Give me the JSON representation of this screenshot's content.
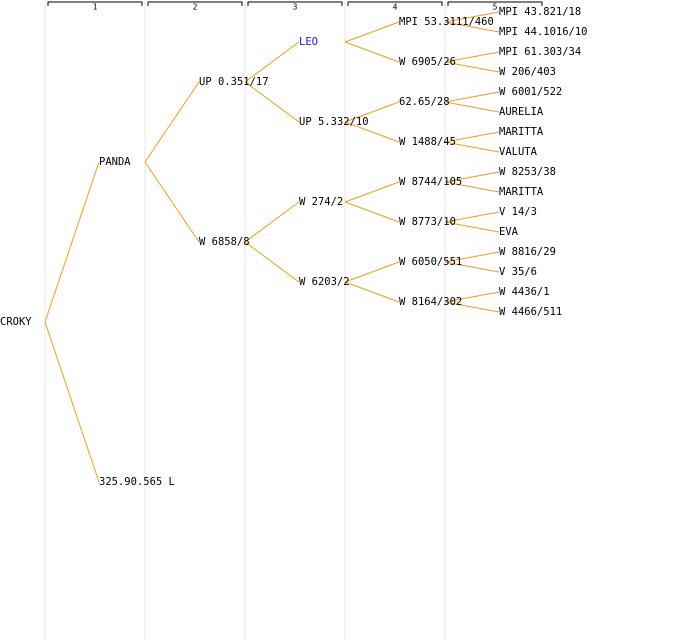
{
  "columns": [
    "1",
    "2",
    "3",
    "4",
    "5"
  ],
  "root": {
    "label": "CROKY"
  },
  "generations": [
    [
      {
        "label": "PANDA"
      },
      {
        "label": "325.90.565 L"
      }
    ],
    [
      {
        "label": "UP 0.351/17"
      },
      {
        "label": "W 6858/8"
      }
    ],
    [
      {
        "label": "LEO",
        "color": "#1a1acc",
        "link": true
      },
      {
        "label": "UP 5.332/10"
      },
      {
        "label": "W 274/2"
      },
      {
        "label": "W 6203/2"
      }
    ],
    [
      {
        "label": "MPI 53.3111/460"
      },
      {
        "label": "W 6905/26"
      },
      {
        "label": "62.65/28"
      },
      {
        "label": "W 1488/45"
      },
      {
        "label": "W 8744/105"
      },
      {
        "label": "W 8773/10"
      },
      {
        "label": "W 6050/551"
      },
      {
        "label": "W 8164/302"
      }
    ],
    [
      {
        "label": "MPI 43.821/18"
      },
      {
        "label": "MPI 44.1016/10"
      },
      {
        "label": "MPI 61.303/34"
      },
      {
        "label": "W 206/403"
      },
      {
        "label": "W 6001/522"
      },
      {
        "label": "AURELIA"
      },
      {
        "label": "MARITTA"
      },
      {
        "label": "VALUTA"
      },
      {
        "label": "W 8253/38"
      },
      {
        "label": "MARITTA"
      },
      {
        "label": "V 14/3"
      },
      {
        "label": "EVA"
      },
      {
        "label": "W 8816/29"
      },
      {
        "label": "V 35/6"
      },
      {
        "label": "W 4436/1"
      },
      {
        "label": "W 4466/511"
      }
    ]
  ]
}
